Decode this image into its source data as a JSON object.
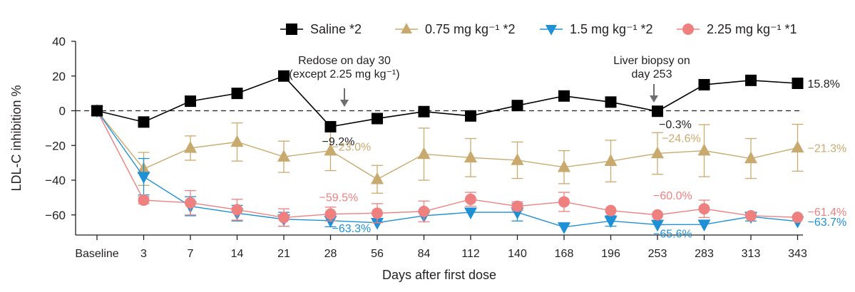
{
  "chart_data": {
    "type": "line",
    "ylabel": "LDL-C inhibition %",
    "xlabel": "Days after first dose",
    "ylim": [
      -70,
      40
    ],
    "yticks": [
      40,
      20,
      0,
      -20,
      -40,
      -60
    ],
    "categories": [
      "Baseline",
      "3",
      "7",
      "14",
      "21",
      "28",
      "56",
      "84",
      "112",
      "140",
      "168",
      "196",
      "253",
      "283",
      "313",
      "343"
    ],
    "legend": [
      {
        "label": "Saline *2"
      },
      {
        "label": "0.75 mg kg⁻¹ *2"
      },
      {
        "label": "1.5 mg kg⁻¹ *2"
      },
      {
        "label": "2.25 mg kg⁻¹ *1"
      }
    ],
    "series": [
      {
        "name": "Saline *2",
        "marker": "square",
        "color": "#000000",
        "values": [
          0,
          -6.5,
          5.5,
          10,
          20,
          -9.2,
          -4.5,
          -0.5,
          -3,
          3,
          8.5,
          5,
          -0.3,
          15,
          17.5,
          15.8
        ],
        "err": [
          0,
          0,
          0,
          0,
          0,
          0,
          0,
          0,
          0,
          0,
          0,
          0,
          0,
          0,
          0,
          0
        ]
      },
      {
        "name": "0.75 mg kg⁻¹ *2",
        "marker": "triangle-up",
        "color": "#c9aa6e",
        "values": [
          0,
          -33.5,
          -21.5,
          -18,
          -26.5,
          -23,
          -39.5,
          -25,
          -27,
          -28.5,
          -32.5,
          -29,
          -24.6,
          -23,
          -27.5,
          -21.3
        ],
        "err": [
          0,
          9.5,
          7,
          11,
          9,
          11.5,
          8,
          15,
          11,
          10.5,
          9.5,
          12,
          12,
          15,
          11.5,
          13.5
        ]
      },
      {
        "name": "1.5 mg kg⁻¹ *2",
        "marker": "triangle-down",
        "color": "#1e90d6",
        "values": [
          0,
          -38,
          -55,
          -59,
          -62.5,
          -63.3,
          -64.5,
          -60.5,
          -58.5,
          -58.5,
          -67,
          -63.5,
          -65.6,
          -65.5,
          -61,
          -63.7
        ],
        "err": [
          0,
          10.5,
          5.5,
          4.5,
          4,
          3.5,
          0,
          0,
          0,
          5,
          0,
          3,
          0,
          0,
          2.5,
          0
        ]
      },
      {
        "name": "2.25 mg kg⁻¹ *1",
        "marker": "circle",
        "color": "#ee8080",
        "values": [
          0,
          -51.5,
          -53,
          -57,
          -61.5,
          -59.5,
          -59,
          -58,
          -51,
          -55,
          -52.5,
          -57.5,
          -60,
          -56.5,
          -60.5,
          -61.4
        ],
        "err": [
          0,
          2,
          7,
          6,
          5,
          4,
          5.5,
          6,
          4,
          2.5,
          5.5,
          0,
          0,
          5,
          0,
          0
        ]
      }
    ],
    "annotations": [
      {
        "text": "Redose on day 30",
        "arrow": true
      },
      {
        "text": "(except 2.25 mg kg⁻¹)"
      },
      {
        "text": "Liver biopsy on",
        "arrow": true
      },
      {
        "text": "day 253"
      }
    ],
    "data_labels": [
      {
        "series": 0,
        "index": 5,
        "text": "−9.2%"
      },
      {
        "series": 0,
        "index": 12,
        "text": "−0.3%"
      },
      {
        "series": 0,
        "index": 15,
        "text": "15.8%"
      },
      {
        "series": 1,
        "index": 5,
        "text": "−23.0%"
      },
      {
        "series": 1,
        "index": 12,
        "text": "−24.6%"
      },
      {
        "series": 1,
        "index": 15,
        "text": "−21.3%"
      },
      {
        "series": 3,
        "index": 5,
        "text": "−59.5%"
      },
      {
        "series": 3,
        "index": 12,
        "text": "−60.0%"
      },
      {
        "series": 3,
        "index": 15,
        "text": "−61.4%"
      },
      {
        "series": 2,
        "index": 5,
        "text": "−63.3%"
      },
      {
        "series": 2,
        "index": 12,
        "text": "−65.6%"
      },
      {
        "series": 2,
        "index": 15,
        "text": "−63.7%"
      }
    ],
    "zero_line": "dashed",
    "grid": false,
    "legend_position": "top-right"
  }
}
